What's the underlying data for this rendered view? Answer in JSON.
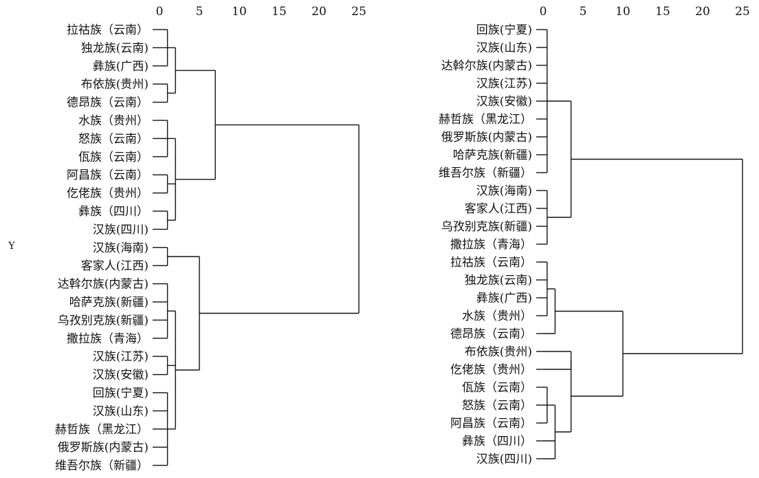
{
  "chart_data": [
    {
      "type": "dendrogram",
      "side_label": "Y",
      "ticks": [
        "0",
        "5",
        "10",
        "15",
        "20",
        "25"
      ],
      "xlim": [
        0,
        25
      ],
      "leaves": [
        "拉祜族（云南）",
        "独龙族(云南)",
        "彝族(广西)",
        "布依族(贵州)",
        "德昂族（云南）",
        "水族（贵州）",
        "怒族（云南）",
        "佤族（云南）",
        "阿昌族（云南）",
        "仡佬族（贵州）",
        "彝族（四川）",
        "汉族(四川)",
        "汉族(海南)",
        "客家人(江西)",
        "达斡尔族(内蒙古)",
        "哈萨克族(新疆)",
        "乌孜别克族(新疆)",
        "撒拉族（青海）",
        "汉族(江苏)",
        "汉族(安徽)",
        "回族(宁夏)",
        "汉族(山东)",
        "赫哲族（黑龙江）",
        "俄罗斯族(内蒙古)",
        "维吾尔族（新疆）"
      ],
      "merges": [
        {
          "members": [
            0,
            1,
            2
          ],
          "height": 1.0
        },
        {
          "members": [
            3,
            4
          ],
          "height": 1.0
        },
        {
          "members": [
            0,
            1,
            2,
            3,
            4
          ],
          "height": 2.0
        },
        {
          "members": [
            5,
            6,
            7
          ],
          "height": 1.0
        },
        {
          "members": [
            8,
            9
          ],
          "height": 1.0
        },
        {
          "members": [
            10,
            11
          ],
          "height": 1.0
        },
        {
          "members": [
            5,
            6,
            7,
            8,
            9,
            10,
            11
          ],
          "height": 2.0
        },
        {
          "members": [
            0,
            1,
            2,
            3,
            4,
            5,
            6,
            7,
            8,
            9,
            10,
            11
          ],
          "height": 7.0
        },
        {
          "members": [
            12,
            13
          ],
          "height": 1.0
        },
        {
          "members": [
            14,
            15,
            16,
            17
          ],
          "height": 1.0
        },
        {
          "members": [
            18,
            19
          ],
          "height": 1.0
        },
        {
          "members": [
            20,
            21,
            22,
            23,
            24
          ],
          "height": 1.0
        },
        {
          "members": [
            14,
            15,
            16,
            17,
            18,
            19,
            20,
            21,
            22,
            23,
            24
          ],
          "height": 2.0
        },
        {
          "members": [
            12,
            13,
            14,
            15,
            16,
            17,
            18,
            19,
            20,
            21,
            22,
            23,
            24
          ],
          "height": 5.0
        },
        {
          "members": [
            0,
            1,
            2,
            3,
            4,
            5,
            6,
            7,
            8,
            9,
            10,
            11,
            12,
            13,
            14,
            15,
            16,
            17,
            18,
            19,
            20,
            21,
            22,
            23,
            24
          ],
          "height": 25.0
        }
      ]
    },
    {
      "type": "dendrogram",
      "ticks": [
        "0",
        "5",
        "10",
        "15",
        "20",
        "25"
      ],
      "xlim": [
        0,
        25
      ],
      "leaves": [
        "回族(宁夏)",
        "汉族(山东)",
        "达斡尔族(内蒙古)",
        "汉族(江苏)",
        "汉族(安徽)",
        "赫哲族（黑龙江）",
        "俄罗斯族(内蒙古)",
        "哈萨克族(新疆)",
        "维吾尔族（新疆）",
        "汉族(海南)",
        "客家人(江西)",
        "乌孜别克族(新疆)",
        "撒拉族（青海）",
        "拉祜族（云南）",
        "独龙族(云南)",
        "彝族(广西)",
        "水族（贵州）",
        "德昂族（云南）",
        "布依族(贵州)",
        "仡佬族（贵州）",
        "佤族（云南）",
        "怒族（云南）",
        "阿昌族（云南）",
        "彝族（四川）",
        "汉族(四川)"
      ],
      "merges": [
        {
          "members": [
            0,
            1,
            2,
            3,
            4,
            5,
            6,
            7,
            8
          ],
          "height": 0.5
        },
        {
          "members": [
            9,
            10,
            11,
            12
          ],
          "height": 0.5
        },
        {
          "members": [
            0,
            1,
            2,
            3,
            4,
            5,
            6,
            7,
            8,
            9,
            10,
            11,
            12
          ],
          "height": 3.5
        },
        {
          "members": [
            13,
            14,
            15,
            16
          ],
          "height": 0.5
        },
        {
          "members": [
            13,
            14,
            15,
            16,
            17
          ],
          "height": 1.5
        },
        {
          "members": [
            18,
            19
          ],
          "height": 3.5
        },
        {
          "members": [
            20,
            21,
            22
          ],
          "height": 0.5
        },
        {
          "members": [
            20,
            21,
            22,
            23,
            24
          ],
          "height": 1.5
        },
        {
          "members": [
            18,
            19,
            20,
            21,
            22,
            23,
            24
          ],
          "height": 3.5
        },
        {
          "members": [
            13,
            14,
            15,
            16,
            17,
            18,
            19,
            20,
            21,
            22,
            23,
            24
          ],
          "height": 10.0
        },
        {
          "members": [
            0,
            1,
            2,
            3,
            4,
            5,
            6,
            7,
            8,
            9,
            10,
            11,
            12,
            13,
            14,
            15,
            16,
            17,
            18,
            19,
            20,
            21,
            22,
            23,
            24
          ],
          "height": 25.0
        }
      ]
    }
  ]
}
